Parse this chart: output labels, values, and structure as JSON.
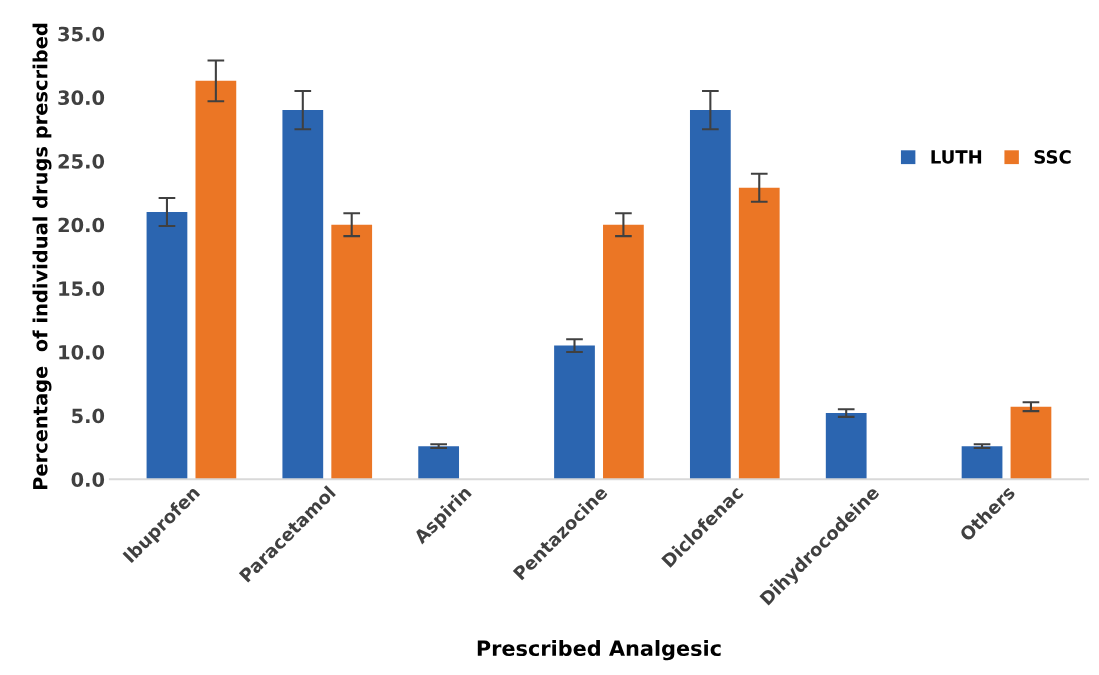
{
  "chart_data": {
    "type": "bar",
    "xlabel": "Prescribed Analgesic",
    "ylabel": "Percentage  of individual drugs prescribed",
    "categories": [
      "Ibuprofen",
      "Paracetamol",
      "Aspirin",
      "Pentazocine",
      "Diclofenac",
      "Dihydrocodeine",
      "Others"
    ],
    "series": [
      {
        "name": "LUTH",
        "color": "#2b65b0",
        "values": [
          21.0,
          29.0,
          2.6,
          10.5,
          29.0,
          5.2,
          2.6
        ],
        "errors": [
          1.1,
          1.5,
          0.15,
          0.5,
          1.5,
          0.3,
          0.15
        ]
      },
      {
        "name": "SSC",
        "color": "#eb7625",
        "values": [
          31.3,
          20.0,
          null,
          20.0,
          22.9,
          null,
          5.7
        ],
        "errors": [
          1.6,
          0.9,
          null,
          0.9,
          1.1,
          null,
          0.35
        ]
      }
    ],
    "ylim": [
      0,
      35
    ],
    "yticks": [
      {
        "value": 0,
        "label": "0.0"
      },
      {
        "value": 5,
        "label": "5.0"
      },
      {
        "value": 10,
        "label": "10.0"
      },
      {
        "value": 15,
        "label": "15.0"
      },
      {
        "value": 20,
        "label": "20.0"
      },
      {
        "value": 25,
        "label": "25.0"
      },
      {
        "value": 30,
        "label": "30.0"
      },
      {
        "value": 35,
        "label": "35.0"
      }
    ],
    "grid": false,
    "legend": "right"
  }
}
